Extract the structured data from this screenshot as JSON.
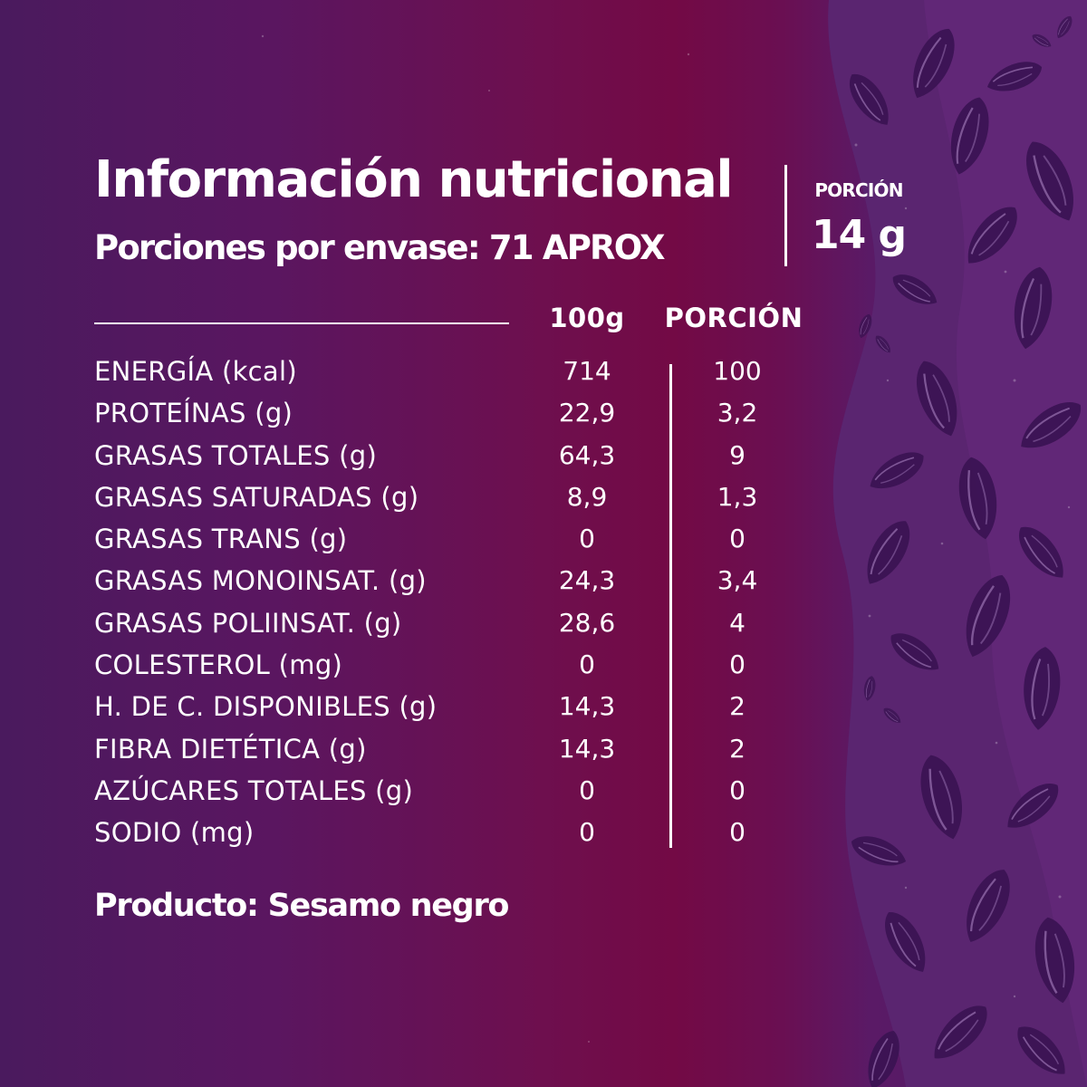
{
  "title": "Información nutricional",
  "servings_per_package": "Porciones por envase: 71 APROX",
  "portion": {
    "label": "PORCIÓN",
    "value": "14 g"
  },
  "columns": {
    "per_100g": "100g",
    "per_portion": "PORCIÓN"
  },
  "rows": [
    {
      "label": "ENERGÍA (kcal)",
      "per_100g": "714",
      "per_portion": "100"
    },
    {
      "label": "PROTEÍNAS (g)",
      "per_100g": "22,9",
      "per_portion": "3,2"
    },
    {
      "label": "GRASAS TOTALES (g)",
      "per_100g": "64,3",
      "per_portion": "9"
    },
    {
      "label": "GRASAS SATURADAS (g)",
      "per_100g": "8,9",
      "per_portion": "1,3"
    },
    {
      "label": "GRASAS TRANS (g)",
      "per_100g": "0",
      "per_portion": "0"
    },
    {
      "label": "GRASAS MONOINSAT. (g)",
      "per_100g": "24,3",
      "per_portion": "3,4"
    },
    {
      "label": "GRASAS POLIINSAT. (g)",
      "per_100g": "28,6",
      "per_portion": "4"
    },
    {
      "label": "COLESTEROL (mg)",
      "per_100g": "0",
      "per_portion": "0"
    },
    {
      "label": "H. DE C. DISPONIBLES (g)",
      "per_100g": "14,3",
      "per_portion": "2"
    },
    {
      "label": "FIBRA DIETÉTICA (g)",
      "per_100g": "14,3",
      "per_portion": "2"
    },
    {
      "label": "AZÚCARES TOTALES (g)",
      "per_100g": "0",
      "per_portion": "0"
    },
    {
      "label": "SODIO (mg)",
      "per_100g": "0",
      "per_portion": "0"
    }
  ],
  "product": "Producto: Sesamo negro",
  "colors": {
    "background_left": "#4a1a5e",
    "background_center": "#730a45",
    "wave_band": "#5e2270",
    "seed_dark": "#3a1352",
    "seed_mid": "#5a2878",
    "text": "#ffffff"
  }
}
